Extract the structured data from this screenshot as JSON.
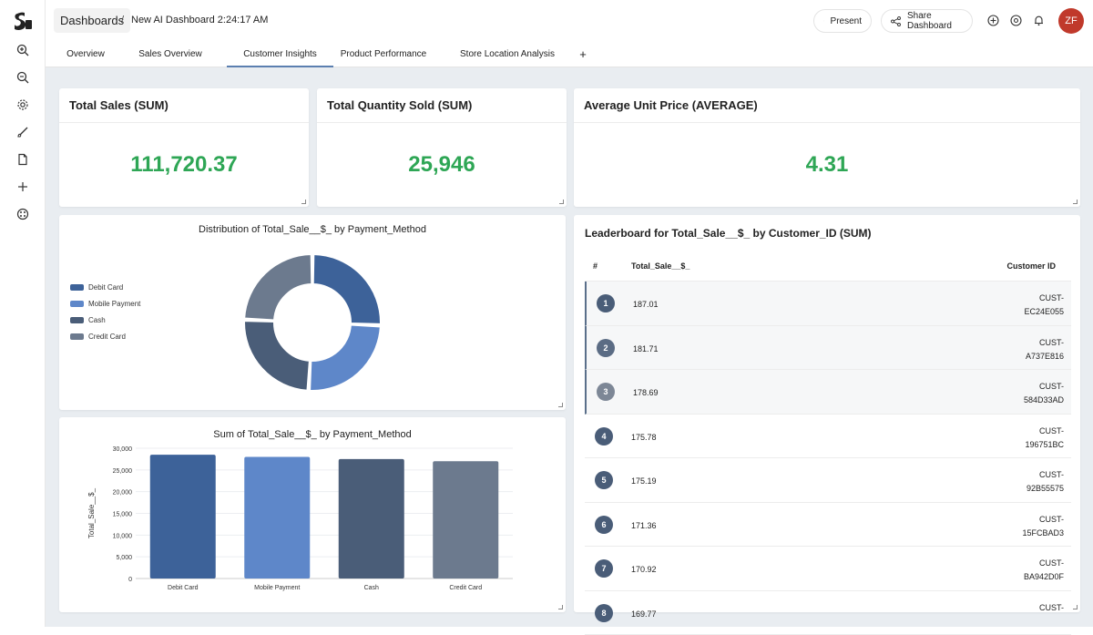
{
  "breadcrumb": {
    "root": "Dashboards",
    "separator": "/",
    "current": "New AI Dashboard 2:24:17 AM"
  },
  "toolbar": {
    "present_label": "Present",
    "share_label": "Share Dashboard",
    "avatar_initials": "ZF"
  },
  "tabs": [
    {
      "label": "Overview"
    },
    {
      "label": "Sales Overview"
    },
    {
      "label": "Customer Insights"
    },
    {
      "label": "Product Performance"
    },
    {
      "label": "Store Location Analysis"
    },
    {
      "label": "+"
    }
  ],
  "active_tab": "Customer Insights",
  "kpis": [
    {
      "title": "Total Sales (SUM)",
      "value": "111,720.37"
    },
    {
      "title": "Total Quantity Sold (SUM)",
      "value": "25,946"
    },
    {
      "title": "Average Unit Price (AVERAGE)",
      "value": "4.31"
    }
  ],
  "donut": {
    "title": "Distribution of Total_Sale__$_ by Payment_Method",
    "legend": [
      "Debit Card",
      "Mobile Payment",
      "Cash",
      "Credit Card"
    ]
  },
  "bar": {
    "title": "Sum of Total_Sale__$_ by Payment_Method",
    "ylabel": "Total_Sale__$_",
    "yticks": [
      "30,000",
      "25,000",
      "20,000",
      "15,000",
      "10,000",
      "5,000",
      "0"
    ]
  },
  "chart_data": [
    {
      "type": "pie",
      "title": "Distribution of Total_Sale__$_ by Payment_Method",
      "categories": [
        "Debit Card",
        "Mobile Payment",
        "Cash",
        "Credit Card"
      ],
      "values": [
        28500,
        28000,
        27500,
        27000
      ],
      "colors": [
        "#3d6299",
        "#5e87c9",
        "#4a5d78",
        "#6c7a8e"
      ]
    },
    {
      "type": "bar",
      "title": "Sum of Total_Sale__$_ by Payment_Method",
      "categories": [
        "Debit Card",
        "Mobile Payment",
        "Cash",
        "Credit Card"
      ],
      "values": [
        28500,
        28000,
        27500,
        27000
      ],
      "ylabel": "Total_Sale__$_",
      "ylim": [
        0,
        30000
      ],
      "colors": [
        "#3d6299",
        "#5e87c9",
        "#4a5d78",
        "#6c7a8e"
      ]
    }
  ],
  "leaderboard": {
    "title": "Leaderboard for Total_Sale__$_ by Customer_ID (SUM)",
    "headers": {
      "rank": "#",
      "value": "Total_Sale__$_",
      "customer": "Customer ID"
    },
    "rows": [
      {
        "rank": "1",
        "value": "187.01",
        "cust1": "CUST-",
        "cust2": "EC24E055"
      },
      {
        "rank": "2",
        "value": "181.71",
        "cust1": "CUST-",
        "cust2": "A737E816"
      },
      {
        "rank": "3",
        "value": "178.69",
        "cust1": "CUST-",
        "cust2": "584D33AD"
      },
      {
        "rank": "4",
        "value": "175.78",
        "cust1": "CUST-",
        "cust2": "196751BC"
      },
      {
        "rank": "5",
        "value": "175.19",
        "cust1": "CUST-",
        "cust2": "92B55575"
      },
      {
        "rank": "6",
        "value": "171.36",
        "cust1": "CUST-",
        "cust2": "15FCBAD3"
      },
      {
        "rank": "7",
        "value": "170.92",
        "cust1": "CUST-",
        "cust2": "BA942D0F"
      },
      {
        "rank": "8",
        "value": "169.77",
        "cust1": "CUST-",
        "cust2": ""
      }
    ]
  },
  "colors": {
    "kpi_value": "#2ea655",
    "avatar": "#c0392b",
    "rank_badges": [
      "#4a5d78",
      "#5b6c84",
      "#7d8796",
      "#4a5d78",
      "#4a5d78",
      "#4a5d78",
      "#4a5d78",
      "#4a5d78"
    ]
  }
}
